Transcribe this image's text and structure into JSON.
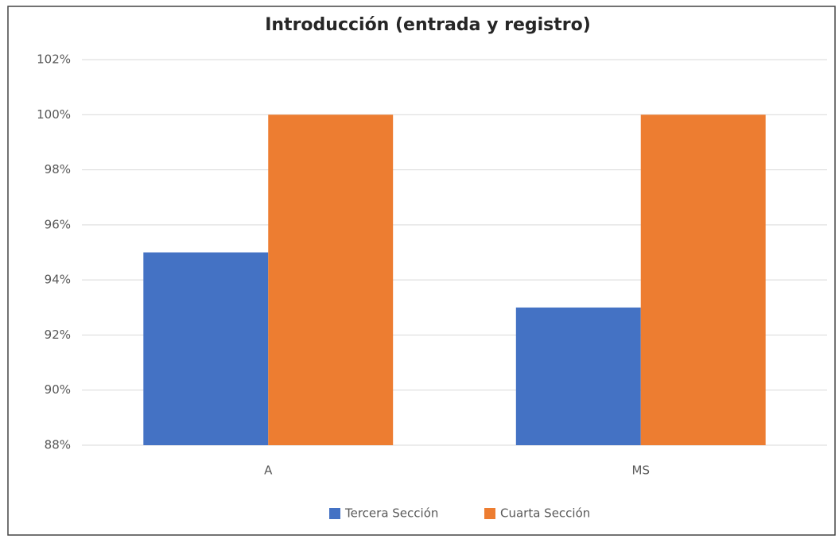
{
  "chart_data": {
    "type": "bar",
    "title": "Introducción (entrada y registro)",
    "categories": [
      "A",
      "MS"
    ],
    "series": [
      {
        "name": "Tercera Sección",
        "color": "#4472c4",
        "values": [
          95,
          93
        ]
      },
      {
        "name": "Cuarta Sección",
        "color": "#ed7d31",
        "values": [
          100,
          100
        ]
      }
    ],
    "ylim": [
      88,
      102
    ],
    "yticks": [
      {
        "value": 88,
        "label": "88%"
      },
      {
        "value": 90,
        "label": "90%"
      },
      {
        "value": 92,
        "label": "92%"
      },
      {
        "value": 94,
        "label": "94%"
      },
      {
        "value": 96,
        "label": "96%"
      },
      {
        "value": 98,
        "label": "98%"
      },
      {
        "value": 100,
        "label": "100%"
      },
      {
        "value": 102,
        "label": "102%"
      }
    ],
    "grid": true,
    "legend": "bottom"
  }
}
